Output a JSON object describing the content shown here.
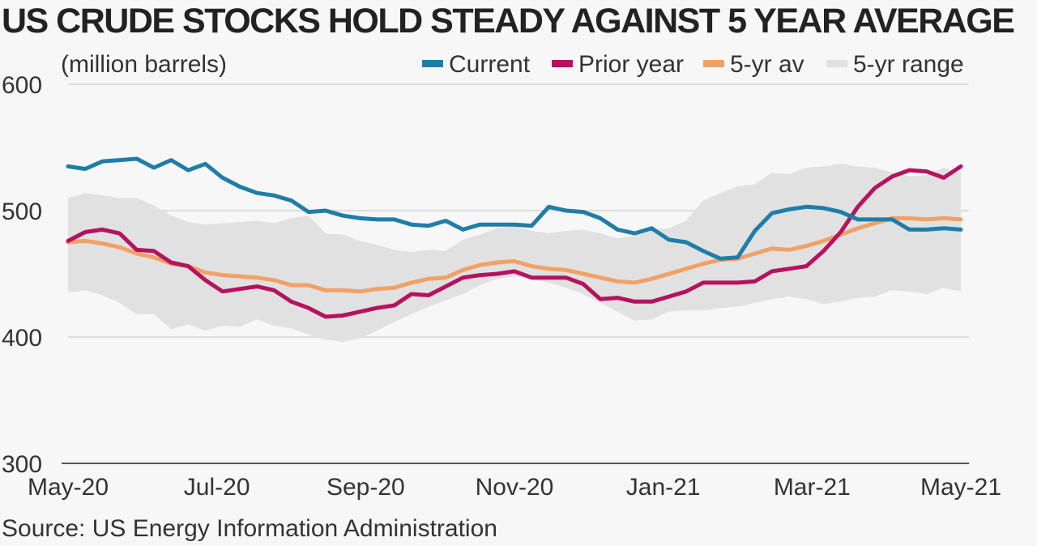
{
  "title": "US CRUDE STOCKS HOLD STEADY AGAINST 5 YEAR AVERAGE",
  "source": "Source: US Energy Information Administration",
  "chart_data": {
    "type": "line",
    "ylabel": "(million barrels)",
    "ylim": [
      300,
      600
    ],
    "yticks": [
      300,
      400,
      500,
      600
    ],
    "xticks": [
      "May-20",
      "Jul-20",
      "Sep-20",
      "Nov-20",
      "Jan-21",
      "Mar-21",
      "May-21"
    ],
    "legend_position": "top-right",
    "grid": "horizontal",
    "colors": {
      "current": "#1f7ea8",
      "prior_year": "#b5125f",
      "five_yr_av": "#f0a266",
      "range": "#e1e1e1",
      "grid": "#dddddd",
      "background": "#f7f7f7"
    },
    "series": [
      {
        "name": "Current",
        "values": [
          535,
          533,
          539,
          540,
          541,
          534,
          540,
          532,
          537,
          526,
          519,
          514,
          512,
          508,
          499,
          500,
          496,
          494,
          493,
          493,
          489,
          488,
          492,
          485,
          489,
          489,
          489,
          488,
          503,
          500,
          499,
          494,
          485,
          482,
          486,
          477,
          475,
          468,
          462,
          463,
          484,
          498,
          501,
          503,
          502,
          499,
          493,
          493,
          493,
          485,
          485,
          486,
          485
        ]
      },
      {
        "name": "Prior year",
        "values": [
          476,
          483,
          485,
          482,
          469,
          468,
          459,
          456,
          445,
          436,
          438,
          440,
          437,
          428,
          423,
          416,
          417,
          420,
          423,
          425,
          434,
          433,
          440,
          447,
          449,
          450,
          452,
          447,
          447,
          447,
          442,
          430,
          431,
          428,
          428,
          432,
          436,
          443,
          443,
          443,
          444,
          452,
          454,
          456,
          468,
          483,
          503,
          518,
          527,
          532,
          531,
          526,
          535
        ]
      },
      {
        "name": "5-yr av",
        "values": [
          475,
          476,
          474,
          471,
          466,
          463,
          458,
          456,
          451,
          449,
          448,
          447,
          445,
          441,
          441,
          437,
          437,
          436,
          438,
          439,
          443,
          446,
          447,
          453,
          457,
          459,
          460,
          456,
          454,
          453,
          450,
          447,
          444,
          443,
          446,
          450,
          454,
          458,
          461,
          462,
          466,
          470,
          469,
          472,
          476,
          481,
          486,
          490,
          494,
          494,
          493,
          494,
          493
        ]
      },
      {
        "name": "5-yr range",
        "upper": [
          510,
          514,
          512,
          510,
          510,
          504,
          496,
          491,
          489,
          490,
          491,
          492,
          490,
          494,
          496,
          482,
          481,
          476,
          473,
          469,
          467,
          469,
          468,
          477,
          481,
          486,
          488,
          484,
          482,
          484,
          485,
          482,
          478,
          480,
          484,
          486,
          492,
          508,
          514,
          519,
          521,
          530,
          529,
          534,
          535,
          537,
          535,
          534,
          530,
          527,
          528,
          534,
          530
        ],
        "lower": [
          435,
          437,
          433,
          427,
          418,
          418,
          406,
          410,
          405,
          409,
          408,
          414,
          409,
          407,
          402,
          398,
          396,
          399,
          405,
          412,
          418,
          424,
          429,
          434,
          441,
          446,
          448,
          446,
          443,
          439,
          434,
          427,
          420,
          413,
          414,
          420,
          421,
          421,
          423,
          424,
          427,
          430,
          432,
          430,
          426,
          428,
          431,
          432,
          437,
          436,
          434,
          439,
          436
        ]
      }
    ]
  }
}
